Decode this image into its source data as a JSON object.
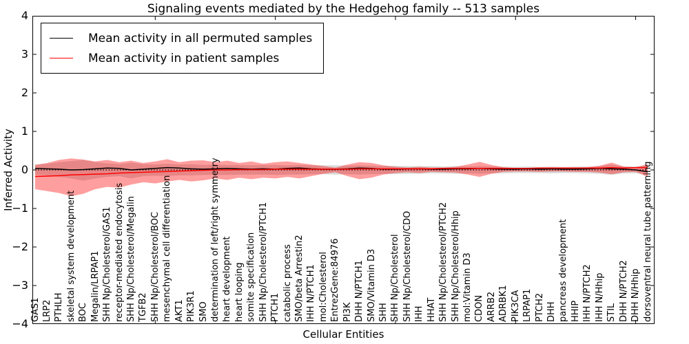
{
  "chart_data": {
    "type": "line",
    "title": "Signaling events mediated by the Hedgehog family -- 513 samples",
    "xlabel": "Cellular Entities",
    "ylabel": "Inferred Activity",
    "ylim": [
      -4,
      4
    ],
    "ytick_values": [
      4,
      3,
      2,
      1,
      0,
      -1,
      -2,
      -3,
      -4
    ],
    "ytick_labels": [
      "4",
      "3",
      "2",
      "1",
      "0",
      "−1",
      "−2",
      "−3",
      "−4"
    ],
    "xtick_positions": [
      10,
      20,
      30,
      40,
      50
    ],
    "grid": false,
    "legend_position": "upper left",
    "zero_line": true,
    "line_color_permuted": "#000000",
    "line_color_patient": "#ff0000",
    "band_color_permuted": "rgba(0,0,0,0.15)",
    "band_color_patient": "rgba(255,0,0,0.38)",
    "categories": [
      "GAS1",
      "LRP2",
      "PTHLH",
      "skeletal system development",
      "BOC",
      "Megalin/LRPAP1",
      "SHH Np/Cholesterol/GAS1",
      "receptor-mediated endocytosis",
      "SHH Np/Cholesterol/Megalin",
      "TGFB2",
      "SHH Np/Cholesterol/BOC",
      "mesenchymal cell differentiation",
      "AKT1",
      "PIK3R1",
      "SMO",
      "determination of left/right symmetry",
      "heart development",
      "heart looping",
      "somite specification",
      "SHH Np/Cholesterol/PTCH1",
      "PTCH1",
      "catabolic process",
      "SMO/beta Arrestin2",
      "IHH N/PTCH1",
      "mol:Cholesterol",
      "EntrezGene:84976",
      "PI3K",
      "DHH N/PTCH1",
      "SMO/Vitamin D3",
      "SHH",
      "SHH Np/Cholesterol",
      "SHH Np/Cholesterol/CDO",
      "IHH",
      "HHAT",
      "SHH Np/Cholesterol/PTCH2",
      "SHH Np/Cholesterol/Hhip",
      "mol:Vitamin D3",
      "CDON",
      "ARRB2",
      "ADRBK1",
      "PIK3CA",
      "LRPAP1",
      "PTCH2",
      "DHH",
      "pancreas development",
      "HHIP",
      "IHH N/PTCH2",
      "IHH N/Hhip",
      "STIL",
      "DHH N/PTCH2",
      "DHH N/Hhip",
      "dorsoventral neural tube patterning"
    ],
    "series": [
      {
        "name": "Mean activity in all permuted samples",
        "color": "#000000",
        "style": "solid",
        "values": [
          0.04,
          0.03,
          0.02,
          0.0,
          0.01,
          0.03,
          0.05,
          0.04,
          0.0,
          0.02,
          0.04,
          0.06,
          0.05,
          0.03,
          0.02,
          0.03,
          0.04,
          0.03,
          0.02,
          0.03,
          0.02,
          0.04,
          0.05,
          0.03,
          0.02,
          0.02,
          0.03,
          0.05,
          0.04,
          0.02,
          0.02,
          0.03,
          0.03,
          0.02,
          0.02,
          0.03,
          0.03,
          0.04,
          0.03,
          0.02,
          0.02,
          0.03,
          0.02,
          0.03,
          0.02,
          0.02,
          0.03,
          0.04,
          0.03,
          0.02,
          0.0,
          -0.05
        ]
      },
      {
        "name": "Mean activity in patient samples",
        "color": "#ff0000",
        "style": "solid",
        "values": [
          -0.17,
          -0.16,
          -0.15,
          -0.13,
          -0.12,
          -0.11,
          -0.1,
          -0.08,
          -0.07,
          -0.06,
          -0.05,
          -0.04,
          -0.03,
          -0.02,
          -0.01,
          0.0,
          0.0,
          0.01,
          0.01,
          0.01,
          0.02,
          0.02,
          0.02,
          0.02,
          0.02,
          0.02,
          0.02,
          0.03,
          0.03,
          0.03,
          0.03,
          0.03,
          0.03,
          0.03,
          0.04,
          0.04,
          0.04,
          0.04,
          0.04,
          0.04,
          0.04,
          0.04,
          0.05,
          0.05,
          0.05,
          0.05,
          0.05,
          0.05,
          0.06,
          0.05,
          0.06,
          0.06
        ]
      }
    ],
    "bands": [
      {
        "name": "permuted-samples-range",
        "color": "rgba(0,0,0,0.15)",
        "upper": [
          0.14,
          0.16,
          0.2,
          0.23,
          0.26,
          0.2,
          0.17,
          0.15,
          0.19,
          0.15,
          0.14,
          0.16,
          0.14,
          0.15,
          0.13,
          0.14,
          0.13,
          0.13,
          0.12,
          0.13,
          0.13,
          0.12,
          0.13,
          0.12,
          0.12,
          0.12,
          0.11,
          0.12,
          0.11,
          0.1,
          0.11,
          0.1,
          0.1,
          0.1,
          0.09,
          0.1,
          0.09,
          0.1,
          0.09,
          0.09,
          0.08,
          0.09,
          0.08,
          0.09,
          0.08,
          0.09,
          0.09,
          0.1,
          0.14,
          0.09,
          0.09,
          0.12
        ],
        "lower": [
          -0.12,
          -0.14,
          -0.18,
          -0.22,
          -0.28,
          -0.22,
          -0.18,
          -0.16,
          -0.22,
          -0.16,
          -0.15,
          -0.16,
          -0.14,
          -0.14,
          -0.13,
          -0.13,
          -0.13,
          -0.12,
          -0.12,
          -0.12,
          -0.13,
          -0.12,
          -0.12,
          -0.11,
          -0.11,
          -0.12,
          -0.11,
          -0.12,
          -0.11,
          -0.1,
          -0.11,
          -0.1,
          -0.1,
          -0.09,
          -0.09,
          -0.1,
          -0.09,
          -0.1,
          -0.09,
          -0.09,
          -0.08,
          -0.08,
          -0.08,
          -0.09,
          -0.08,
          -0.08,
          -0.09,
          -0.1,
          -0.13,
          -0.09,
          -0.09,
          -0.11
        ]
      },
      {
        "name": "patient-samples-range",
        "color": "rgba(255,0,0,0.38)",
        "upper": [
          0.13,
          0.18,
          0.26,
          0.3,
          0.27,
          0.22,
          0.26,
          0.2,
          0.24,
          0.18,
          0.22,
          0.28,
          0.2,
          0.24,
          0.25,
          0.2,
          0.24,
          0.18,
          0.22,
          0.16,
          0.2,
          0.22,
          0.18,
          0.14,
          0.1,
          0.06,
          0.14,
          0.2,
          0.18,
          0.12,
          0.08,
          0.06,
          0.08,
          0.06,
          0.06,
          0.08,
          0.14,
          0.21,
          0.13,
          0.07,
          0.05,
          0.05,
          0.06,
          0.05,
          0.05,
          0.06,
          0.07,
          0.11,
          0.19,
          0.09,
          0.07,
          0.15
        ],
        "lower": [
          -0.5,
          -0.55,
          -0.6,
          -0.68,
          -0.62,
          -0.5,
          -0.44,
          -0.46,
          -0.38,
          -0.32,
          -0.35,
          -0.3,
          -0.26,
          -0.3,
          -0.27,
          -0.22,
          -0.26,
          -0.2,
          -0.24,
          -0.2,
          -0.22,
          -0.18,
          -0.22,
          -0.16,
          -0.1,
          -0.06,
          -0.16,
          -0.24,
          -0.2,
          -0.12,
          -0.08,
          -0.06,
          -0.08,
          -0.05,
          -0.06,
          -0.07,
          -0.12,
          -0.18,
          -0.1,
          -0.05,
          -0.04,
          -0.04,
          -0.05,
          -0.04,
          -0.04,
          -0.05,
          -0.05,
          -0.07,
          -0.11,
          -0.06,
          -0.05,
          -0.18
        ]
      }
    ]
  }
}
